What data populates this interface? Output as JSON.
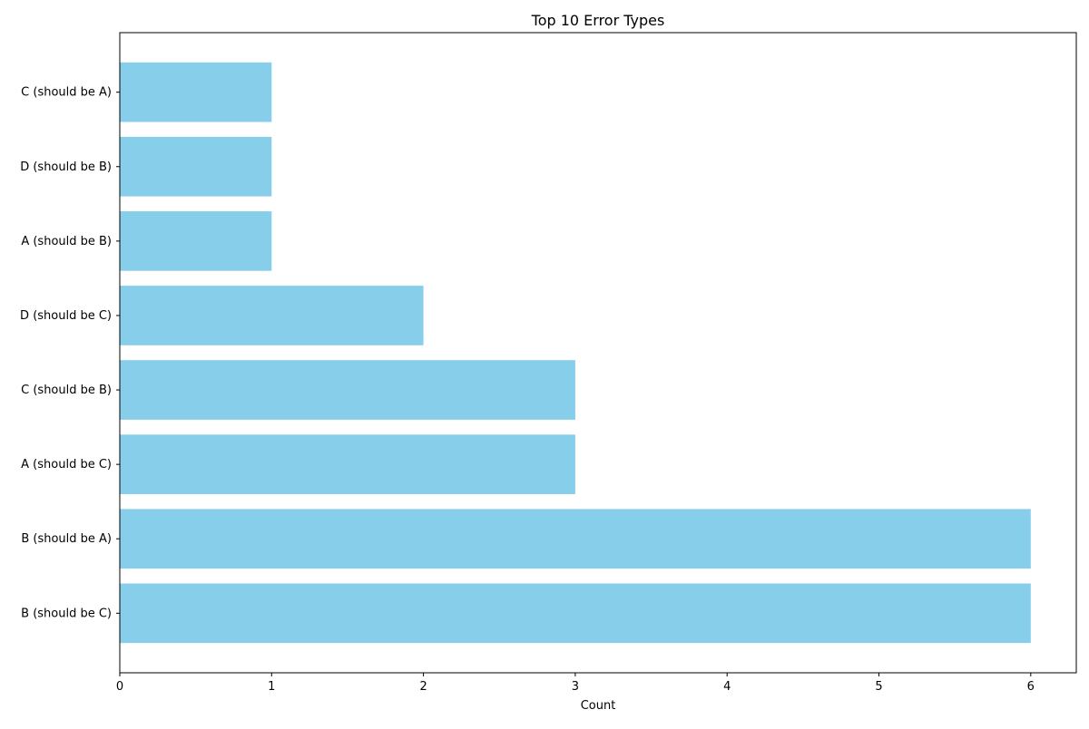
{
  "chart_data": {
    "type": "bar",
    "orientation": "horizontal",
    "title": "Top 10 Error Types",
    "xlabel": "Count",
    "ylabel": "",
    "categories": [
      "B (should be C)",
      "B (should be A)",
      "A (should be C)",
      "C (should be B)",
      "D (should be C)",
      "A (should be B)",
      "D (should be B)",
      "C (should be A)"
    ],
    "values": [
      6,
      6,
      3,
      3,
      2,
      1,
      1,
      1
    ],
    "xlim": [
      0,
      6.3
    ],
    "xticks": [
      0,
      1,
      2,
      3,
      4,
      5,
      6
    ],
    "grid": false,
    "legend": "none",
    "colors": {
      "bar": "#87ceeb",
      "axis": "#000000"
    }
  }
}
